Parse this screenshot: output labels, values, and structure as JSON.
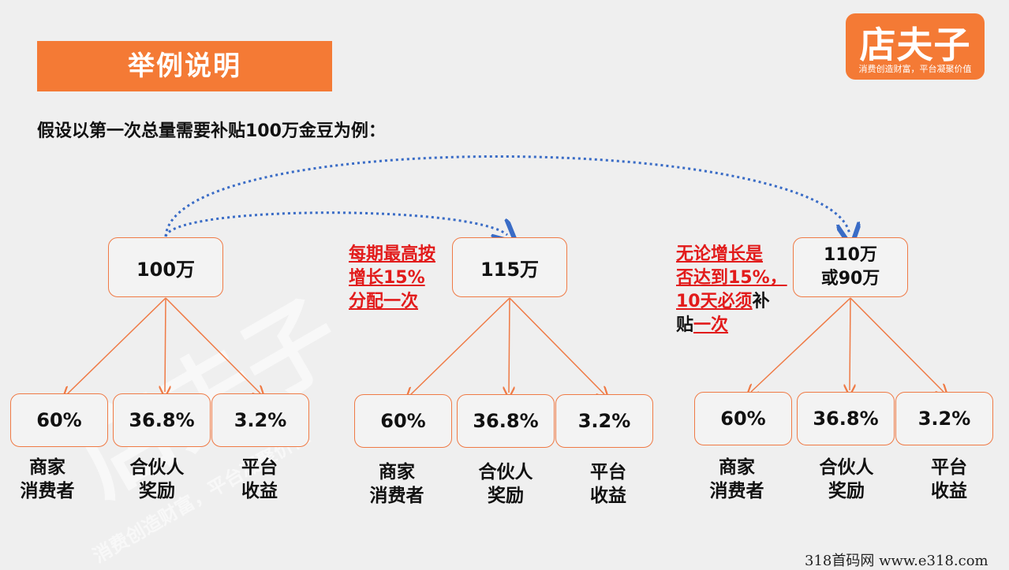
{
  "title": "举例说明",
  "logo": {
    "name": "店夫子",
    "slogan": "消费创造财富，平台凝聚价值"
  },
  "subtitle": "假设以第一次总量需要补贴100万金豆为例：",
  "groups": [
    {
      "total": "100万",
      "splits": [
        {
          "pct": "60%",
          "label1": "商家",
          "label2": "消费者"
        },
        {
          "pct": "36.8%",
          "label1": "合伙人",
          "label2": "奖励"
        },
        {
          "pct": "3.2%",
          "label1": "平台",
          "label2": "收益"
        }
      ]
    },
    {
      "total": "115万",
      "note_lines": [
        "每期最高按",
        "增长15%",
        "分配一次"
      ],
      "splits": [
        {
          "pct": "60%",
          "label1": "商家",
          "label2": "消费者"
        },
        {
          "pct": "36.8%",
          "label1": "合伙人",
          "label2": "奖励"
        },
        {
          "pct": "3.2%",
          "label1": "平台",
          "label2": "收益"
        }
      ]
    },
    {
      "total_line1": "110万",
      "total_line2": "或90万",
      "note": {
        "line1": "无论增长是",
        "line2": "否达到15%，",
        "line3_red": "10天必须",
        "line3_black": "补",
        "line4_black": "贴",
        "line4_red": "一次"
      },
      "splits": [
        {
          "pct": "60%",
          "label1": "商家",
          "label2": "消费者"
        },
        {
          "pct": "36.8%",
          "label1": "合伙人",
          "label2": "奖励"
        },
        {
          "pct": "3.2%",
          "label1": "平台",
          "label2": "收益"
        }
      ]
    }
  ],
  "footer": "318首码网  www.e318.com",
  "colors": {
    "accent": "#f47a35",
    "box_border": "#ef7a45",
    "note_red": "#e21b1b",
    "arrow_blue": "#3a6cc6"
  }
}
